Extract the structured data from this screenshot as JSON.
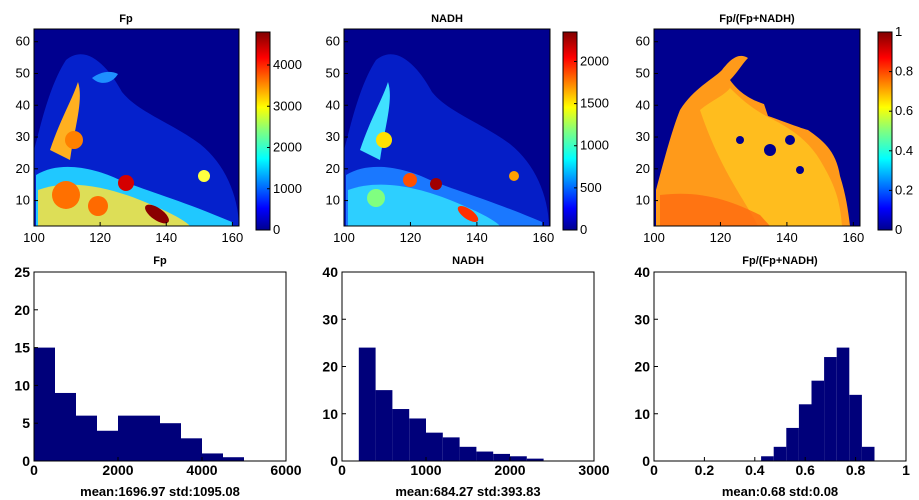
{
  "chart_data": [
    {
      "type": "heatmap",
      "title": "Fp",
      "xlim": [
        100,
        162
      ],
      "ylim": [
        2,
        64
      ],
      "xticks": [
        "100",
        "120",
        "140",
        "160"
      ],
      "yticks": [
        "10",
        "20",
        "30",
        "40",
        "50",
        "60"
      ],
      "colorbar": {
        "range": [
          0,
          4800
        ],
        "ticks": [
          "0",
          "1000",
          "2000",
          "3000",
          "4000"
        ]
      },
      "colormap": "jet"
    },
    {
      "type": "heatmap",
      "title": "NADH",
      "xlim": [
        100,
        162
      ],
      "ylim": [
        2,
        64
      ],
      "xticks": [
        "100",
        "120",
        "140",
        "160"
      ],
      "yticks": [
        "10",
        "20",
        "30",
        "40",
        "50",
        "60"
      ],
      "colorbar": {
        "range": [
          0,
          2350
        ],
        "ticks": [
          "0",
          "500",
          "1000",
          "1500",
          "2000"
        ]
      },
      "colormap": "jet"
    },
    {
      "type": "heatmap",
      "title": "Fp/(Fp+NADH)",
      "xlim": [
        100,
        162
      ],
      "ylim": [
        2,
        64
      ],
      "xticks": [
        "100",
        "120",
        "140",
        "160"
      ],
      "yticks": [
        "10",
        "20",
        "30",
        "40",
        "50",
        "60"
      ],
      "colorbar": {
        "range": [
          0,
          1
        ],
        "ticks": [
          "0",
          "0.2",
          "0.4",
          "0.6",
          "0.8",
          "1"
        ]
      },
      "colormap": "jet"
    },
    {
      "type": "bar",
      "title": "Fp",
      "xlabel": "mean:1696.97 std:1095.08",
      "xlim": [
        0,
        6000
      ],
      "ylim": [
        0,
        25
      ],
      "xticks": [
        "0",
        "2000",
        "4000",
        "6000"
      ],
      "yticks": [
        "0",
        "5",
        "10",
        "15",
        "20",
        "25"
      ],
      "bar_color": "#00007a",
      "x": [
        250,
        750,
        1250,
        1750,
        2250,
        2750,
        3250,
        3750,
        4250,
        4750
      ],
      "values": [
        15,
        9,
        6,
        4,
        6,
        6,
        5,
        3,
        1,
        0.5
      ]
    },
    {
      "type": "bar",
      "title": "NADH",
      "xlabel": "mean:684.27 std:393.83",
      "xlim": [
        0,
        3000
      ],
      "ylim": [
        0,
        40
      ],
      "xticks": [
        "0",
        "1000",
        "2000",
        "3000"
      ],
      "yticks": [
        "0",
        "10",
        "20",
        "30",
        "40"
      ],
      "bar_color": "#00007a",
      "x": [
        300,
        500,
        700,
        900,
        1100,
        1300,
        1500,
        1700,
        1900,
        2100,
        2300
      ],
      "values": [
        24,
        15,
        11,
        9,
        6,
        5,
        3,
        2,
        1.5,
        1,
        0.5
      ]
    },
    {
      "type": "bar",
      "title": "Fp/(Fp+NADH)",
      "xlabel": "mean:0.68 std:0.08",
      "xlim": [
        0,
        1
      ],
      "ylim": [
        0,
        40
      ],
      "xticks": [
        "0",
        "0.2",
        "0.4",
        "0.6",
        "0.8",
        "1"
      ],
      "yticks": [
        "0",
        "10",
        "20",
        "30",
        "40"
      ],
      "bar_color": "#00007a",
      "x": [
        0.45,
        0.5,
        0.55,
        0.6,
        0.65,
        0.7,
        0.75,
        0.8,
        0.85
      ],
      "values": [
        1,
        3,
        7,
        12,
        17,
        22,
        24,
        14,
        3
      ]
    }
  ]
}
